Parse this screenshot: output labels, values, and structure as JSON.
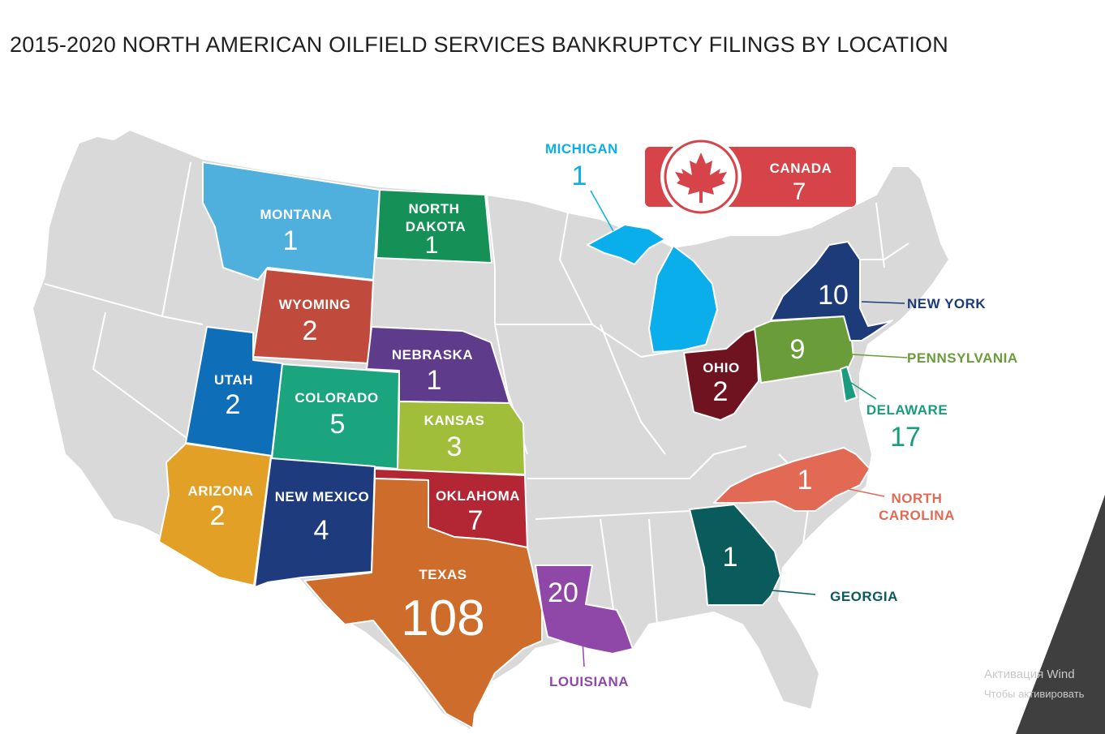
{
  "title": "2015-2020 NORTH AMERICAN OILFIELD SERVICES BANKRUPTCY FILINGS BY LOCATION",
  "states": {
    "montana": {
      "name": "MONTANA",
      "count": "1",
      "color": "#4fb0dd"
    },
    "north_dakota": {
      "name_1": "NORTH",
      "name_2": "DAKOTA",
      "count": "1",
      "color": "#159157"
    },
    "wyoming": {
      "name": "WYOMING",
      "count": "2",
      "color": "#c04a3c"
    },
    "nebraska": {
      "name": "NEBRASKA",
      "count": "1",
      "color": "#5e3b8b"
    },
    "utah": {
      "name": "UTAH",
      "count": "2",
      "color": "#0e6eb8"
    },
    "colorado": {
      "name": "COLORADO",
      "count": "5",
      "color": "#1aa57e"
    },
    "kansas": {
      "name": "KANSAS",
      "count": "3",
      "color": "#a1be3a"
    },
    "arizona": {
      "name": "ARIZONA",
      "count": "2",
      "color": "#e3a027"
    },
    "new_mexico": {
      "name": "NEW MEXICO",
      "count": "4",
      "color": "#1d3b7d"
    },
    "oklahoma": {
      "name": "OKLAHOMA",
      "count": "7",
      "color": "#b32633"
    },
    "texas": {
      "name": "TEXAS",
      "count": "108",
      "color": "#cd6c2b"
    },
    "louisiana": {
      "name": "LOUISIANA",
      "count": "20",
      "color": "#8f48a8"
    },
    "michigan": {
      "name": "MICHIGAN",
      "count": "1",
      "color": "#09aeea"
    },
    "ohio": {
      "name": "OHIO",
      "count": "2",
      "color": "#6f1320"
    },
    "pennsylvania": {
      "name": "PENNSYLVANIA",
      "count": "9",
      "color": "#6b9c3a"
    },
    "new_york": {
      "name": "NEW YORK",
      "count": "10",
      "color": "#1e3b79"
    },
    "delaware": {
      "name": "DELAWARE",
      "count": "17",
      "color": "#1b9c7f"
    },
    "north_carolina": {
      "name_1": "NORTH",
      "name_2": "CAROLINA",
      "count": "1",
      "color": "#e26a55"
    },
    "georgia": {
      "name": "GEORGIA",
      "count": "1",
      "color": "#0a5c5c"
    }
  },
  "canada": {
    "name": "CANADA",
    "count": "7",
    "color": "#d6444a",
    "icon": "maple-leaf-icon"
  },
  "watermark": {
    "line1": "Активация Wind",
    "line2": "Чтобы активировать"
  }
}
